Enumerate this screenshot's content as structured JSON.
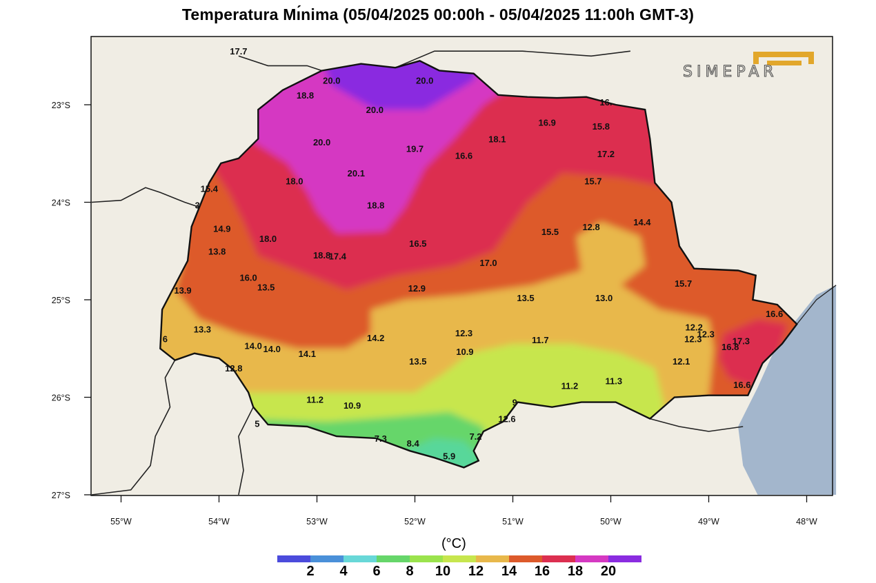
{
  "title": "Temperatura Mı́nima (05/04/2025 00:00h - 05/04/2025 11:00h GMT-3)",
  "logo": {
    "name": "SIMEPAR",
    "accent_color": "#e2a72b"
  },
  "map": {
    "lat_ticks": [
      "23°S",
      "24°S",
      "25°S",
      "26°S",
      "27°S"
    ],
    "lon_ticks": [
      "55°W",
      "54°W",
      "53°W",
      "52°W",
      "51°W",
      "50°W",
      "49°W",
      "48°W"
    ],
    "background_color": "#f0ede4",
    "ocean_color": "#a3b6cc"
  },
  "station_values": [
    {
      "text": "17.7",
      "lon": -53.8,
      "lat": -22.45
    },
    {
      "text": "20.0",
      "lon": -52.85,
      "lat": -22.75
    },
    {
      "text": "20.0",
      "lon": -51.9,
      "lat": -22.75
    },
    {
      "text": "18.8",
      "lon": -53.12,
      "lat": -22.9
    },
    {
      "text": "20.0",
      "lon": -52.41,
      "lat": -23.05
    },
    {
      "text": "16.",
      "lon": -50.05,
      "lat": -22.97
    },
    {
      "text": "16.9",
      "lon": -50.65,
      "lat": -23.18
    },
    {
      "text": "15.8",
      "lon": -50.1,
      "lat": -23.22
    },
    {
      "text": "20.0",
      "lon": -52.95,
      "lat": -23.38
    },
    {
      "text": "19.7",
      "lon": -52.0,
      "lat": -23.45
    },
    {
      "text": "18.1",
      "lon": -51.16,
      "lat": -23.35
    },
    {
      "text": "16.6",
      "lon": -51.5,
      "lat": -23.52
    },
    {
      "text": "17.2",
      "lon": -50.05,
      "lat": -23.5
    },
    {
      "text": "20.1",
      "lon": -52.6,
      "lat": -23.7
    },
    {
      "text": "18.0",
      "lon": -53.23,
      "lat": -23.78
    },
    {
      "text": "15.7",
      "lon": -50.18,
      "lat": -23.78
    },
    {
      "text": "15.4",
      "lon": -54.1,
      "lat": -23.86
    },
    {
      "text": "18.8",
      "lon": -52.4,
      "lat": -24.03
    },
    {
      "text": "3",
      "lon": -54.22,
      "lat": -24.03
    },
    {
      "text": "14.9",
      "lon": -53.97,
      "lat": -24.27
    },
    {
      "text": "12.8",
      "lon": -50.2,
      "lat": -24.25
    },
    {
      "text": "14.4",
      "lon": -49.68,
      "lat": -24.2
    },
    {
      "text": "15.5",
      "lon": -50.62,
      "lat": -24.3
    },
    {
      "text": "18.0",
      "lon": -53.5,
      "lat": -24.37
    },
    {
      "text": "16.5",
      "lon": -51.97,
      "lat": -24.42
    },
    {
      "text": "13.8",
      "lon": -54.02,
      "lat": -24.5
    },
    {
      "text": "18.8",
      "lon": -52.95,
      "lat": -24.54
    },
    {
      "text": "17.4",
      "lon": -52.79,
      "lat": -24.55
    },
    {
      "text": "17.0",
      "lon": -51.25,
      "lat": -24.62
    },
    {
      "text": "16.0",
      "lon": -53.7,
      "lat": -24.77
    },
    {
      "text": "15.7",
      "lon": -49.26,
      "lat": -24.83
    },
    {
      "text": "13.5",
      "lon": -53.52,
      "lat": -24.87
    },
    {
      "text": "13.9",
      "lon": -54.37,
      "lat": -24.9
    },
    {
      "text": "12.9",
      "lon": -51.98,
      "lat": -24.88
    },
    {
      "text": "13.5",
      "lon": -50.87,
      "lat": -24.98
    },
    {
      "text": "13.0",
      "lon": -50.07,
      "lat": -24.98
    },
    {
      "text": "16.6",
      "lon": -48.33,
      "lat": -25.14
    },
    {
      "text": "12.2",
      "lon": -49.15,
      "lat": -25.28
    },
    {
      "text": "13.3",
      "lon": -54.17,
      "lat": -25.3
    },
    {
      "text": "12.3",
      "lon": -51.5,
      "lat": -25.34
    },
    {
      "text": "12.3",
      "lon": -49.16,
      "lat": -25.4
    },
    {
      "text": "12.3",
      "lon": -49.03,
      "lat": -25.35
    },
    {
      "text": "17.3",
      "lon": -48.67,
      "lat": -25.42
    },
    {
      "text": "6",
      "lon": -54.55,
      "lat": -25.4
    },
    {
      "text": "14.2",
      "lon": -52.4,
      "lat": -25.39
    },
    {
      "text": "11.7",
      "lon": -50.72,
      "lat": -25.41
    },
    {
      "text": "16.8",
      "lon": -48.78,
      "lat": -25.48
    },
    {
      "text": "14.0",
      "lon": -53.65,
      "lat": -25.47
    },
    {
      "text": "14.0",
      "lon": -53.46,
      "lat": -25.5
    },
    {
      "text": "14.1",
      "lon": -53.1,
      "lat": -25.55
    },
    {
      "text": "10.9",
      "lon": -51.49,
      "lat": -25.53
    },
    {
      "text": "13.5",
      "lon": -51.97,
      "lat": -25.63
    },
    {
      "text": "12.1",
      "lon": -49.28,
      "lat": -25.63
    },
    {
      "text": "12.8",
      "lon": -53.85,
      "lat": -25.7
    },
    {
      "text": "11.3",
      "lon": -49.97,
      "lat": -25.83
    },
    {
      "text": "11.2",
      "lon": -50.42,
      "lat": -25.88
    },
    {
      "text": "16.6",
      "lon": -48.66,
      "lat": -25.87
    },
    {
      "text": "11.2",
      "lon": -53.02,
      "lat": -26.02
    },
    {
      "text": "10.9",
      "lon": -52.64,
      "lat": -26.08
    },
    {
      "text": "9",
      "lon": -50.98,
      "lat": -26.05
    },
    {
      "text": "12.6",
      "lon": -51.06,
      "lat": -26.22
    },
    {
      "text": "5",
      "lon": -53.61,
      "lat": -26.27
    },
    {
      "text": "7.3",
      "lon": -52.35,
      "lat": -26.42
    },
    {
      "text": "7.2",
      "lon": -51.38,
      "lat": -26.4
    },
    {
      "text": "8.4",
      "lon": -52.02,
      "lat": -26.47
    },
    {
      "text": "5.9",
      "lon": -51.65,
      "lat": -26.6
    }
  ],
  "legend": {
    "unit": "(°C)",
    "colors": [
      "#4b4bdc",
      "#4a90d9",
      "#68d8d8",
      "#66d66a",
      "#9be34d",
      "#c7e64e",
      "#e8b84b",
      "#dd5a2b",
      "#dc2f50",
      "#d539c2",
      "#8a2ce0"
    ],
    "labels": [
      "2",
      "4",
      "6",
      "8",
      "10",
      "12",
      "14",
      "16",
      "18",
      "20"
    ]
  }
}
